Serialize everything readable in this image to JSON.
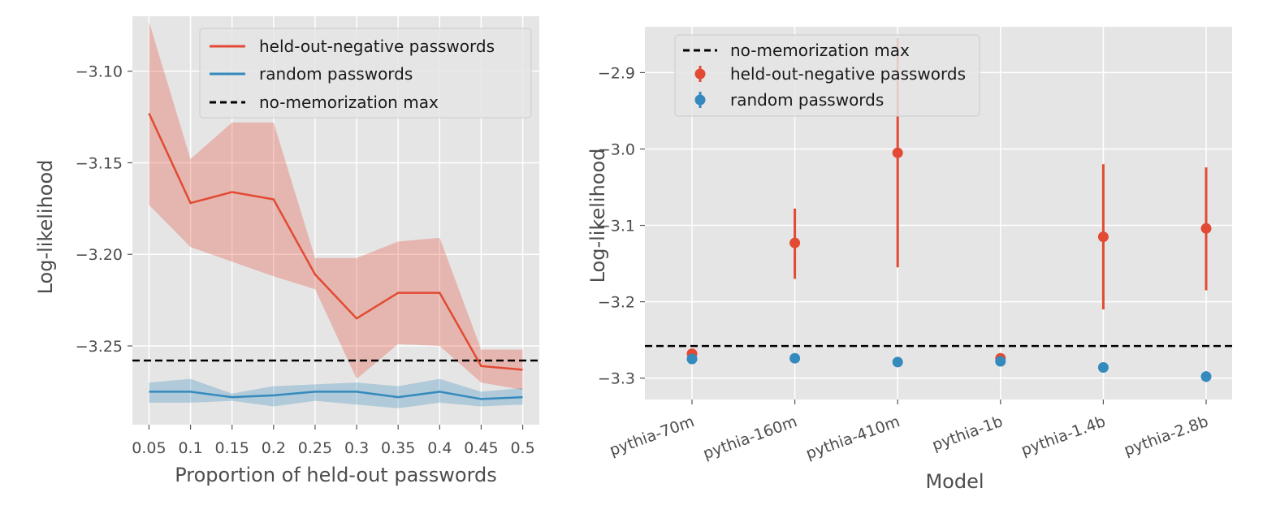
{
  "colors": {
    "held_out": "#E24A33",
    "random": "#348ABD",
    "band_held_out": "#E24A33",
    "band_random": "#348ABD",
    "baseline": "#000000",
    "panel_bg": "#E5E5E5",
    "grid": "#FFFFFF"
  },
  "chart_data": [
    {
      "type": "line",
      "xlabel": "Proportion of held-out passwords",
      "ylabel": "Log-likelihood",
      "x": [
        0.05,
        0.1,
        0.15,
        0.2,
        0.25,
        0.3,
        0.35,
        0.4,
        0.45,
        0.5
      ],
      "x_tick_labels": [
        "0.05",
        "0.1",
        "0.15",
        "0.2",
        "0.25",
        "0.3",
        "0.35",
        "0.4",
        "0.45",
        "0.5"
      ],
      "xlim": [
        0.03,
        0.52
      ],
      "ylim": [
        -3.293,
        -3.07
      ],
      "y_ticks": [
        -3.1,
        -3.15,
        -3.2,
        -3.25
      ],
      "y_tick_labels": [
        "−3.10",
        "−3.15",
        "−3.20",
        "−3.25"
      ],
      "grid": true,
      "legend_position": "top-right",
      "legend": [
        "held-out-negative passwords",
        "random passwords",
        "no-memorization max"
      ],
      "series": [
        {
          "name": "held-out-negative passwords",
          "values": [
            -3.123,
            -3.172,
            -3.166,
            -3.17,
            -3.211,
            -3.235,
            -3.221,
            -3.221,
            -3.261,
            -3.263
          ],
          "lower": [
            -3.173,
            -3.196,
            -3.204,
            -3.212,
            -3.219,
            -3.268,
            -3.249,
            -3.25,
            -3.27,
            -3.274
          ],
          "upper": [
            -3.073,
            -3.148,
            -3.128,
            -3.128,
            -3.202,
            -3.202,
            -3.193,
            -3.191,
            -3.252,
            -3.252
          ]
        },
        {
          "name": "random passwords",
          "values": [
            -3.275,
            -3.275,
            -3.278,
            -3.277,
            -3.275,
            -3.275,
            -3.278,
            -3.275,
            -3.279,
            -3.278
          ],
          "lower": [
            -3.281,
            -3.281,
            -3.28,
            -3.283,
            -3.28,
            -3.282,
            -3.284,
            -3.281,
            -3.283,
            -3.282
          ],
          "upper": [
            -3.27,
            -3.268,
            -3.276,
            -3.272,
            -3.271,
            -3.27,
            -3.272,
            -3.268,
            -3.275,
            -3.273
          ]
        }
      ],
      "baseline": {
        "name": "no-memorization max",
        "value": -3.258
      }
    },
    {
      "type": "scatter",
      "xlabel": "Model",
      "ylabel": "Log-likelihood",
      "categories": [
        "pythia-70m",
        "pythia-160m",
        "pythia-410m",
        "pythia-1b",
        "pythia-1.4b",
        "pythia-2.8b"
      ],
      "ylim": [
        -3.328,
        -2.84
      ],
      "y_ticks": [
        -2.9,
        -3.0,
        -3.1,
        -3.2,
        -3.3
      ],
      "y_tick_labels": [
        "−2.9",
        "−3.0",
        "−3.1",
        "−3.2",
        "−3.3"
      ],
      "grid": true,
      "legend_position": "top-left",
      "legend": [
        "no-memorization max",
        "held-out-negative passwords",
        "random passwords"
      ],
      "series": [
        {
          "name": "held-out-negative passwords",
          "values": [
            -3.268,
            -3.123,
            -3.005,
            -3.274,
            -3.115,
            -3.104
          ],
          "err_low": [
            -3.27,
            -3.17,
            -3.155,
            -3.276,
            -3.21,
            -3.185
          ],
          "err_high": [
            -3.266,
            -3.078,
            -2.855,
            -3.272,
            -3.02,
            -3.024
          ]
        },
        {
          "name": "random passwords",
          "values": [
            -3.275,
            -3.274,
            -3.279,
            -3.278,
            -3.286,
            -3.298
          ],
          "err_low": [
            -3.277,
            -3.276,
            -3.281,
            -3.281,
            -3.289,
            -3.305
          ],
          "err_high": [
            -3.273,
            -3.272,
            -3.277,
            -3.275,
            -3.283,
            -3.291
          ]
        }
      ],
      "baseline": {
        "name": "no-memorization max",
        "value": -3.258
      }
    }
  ]
}
